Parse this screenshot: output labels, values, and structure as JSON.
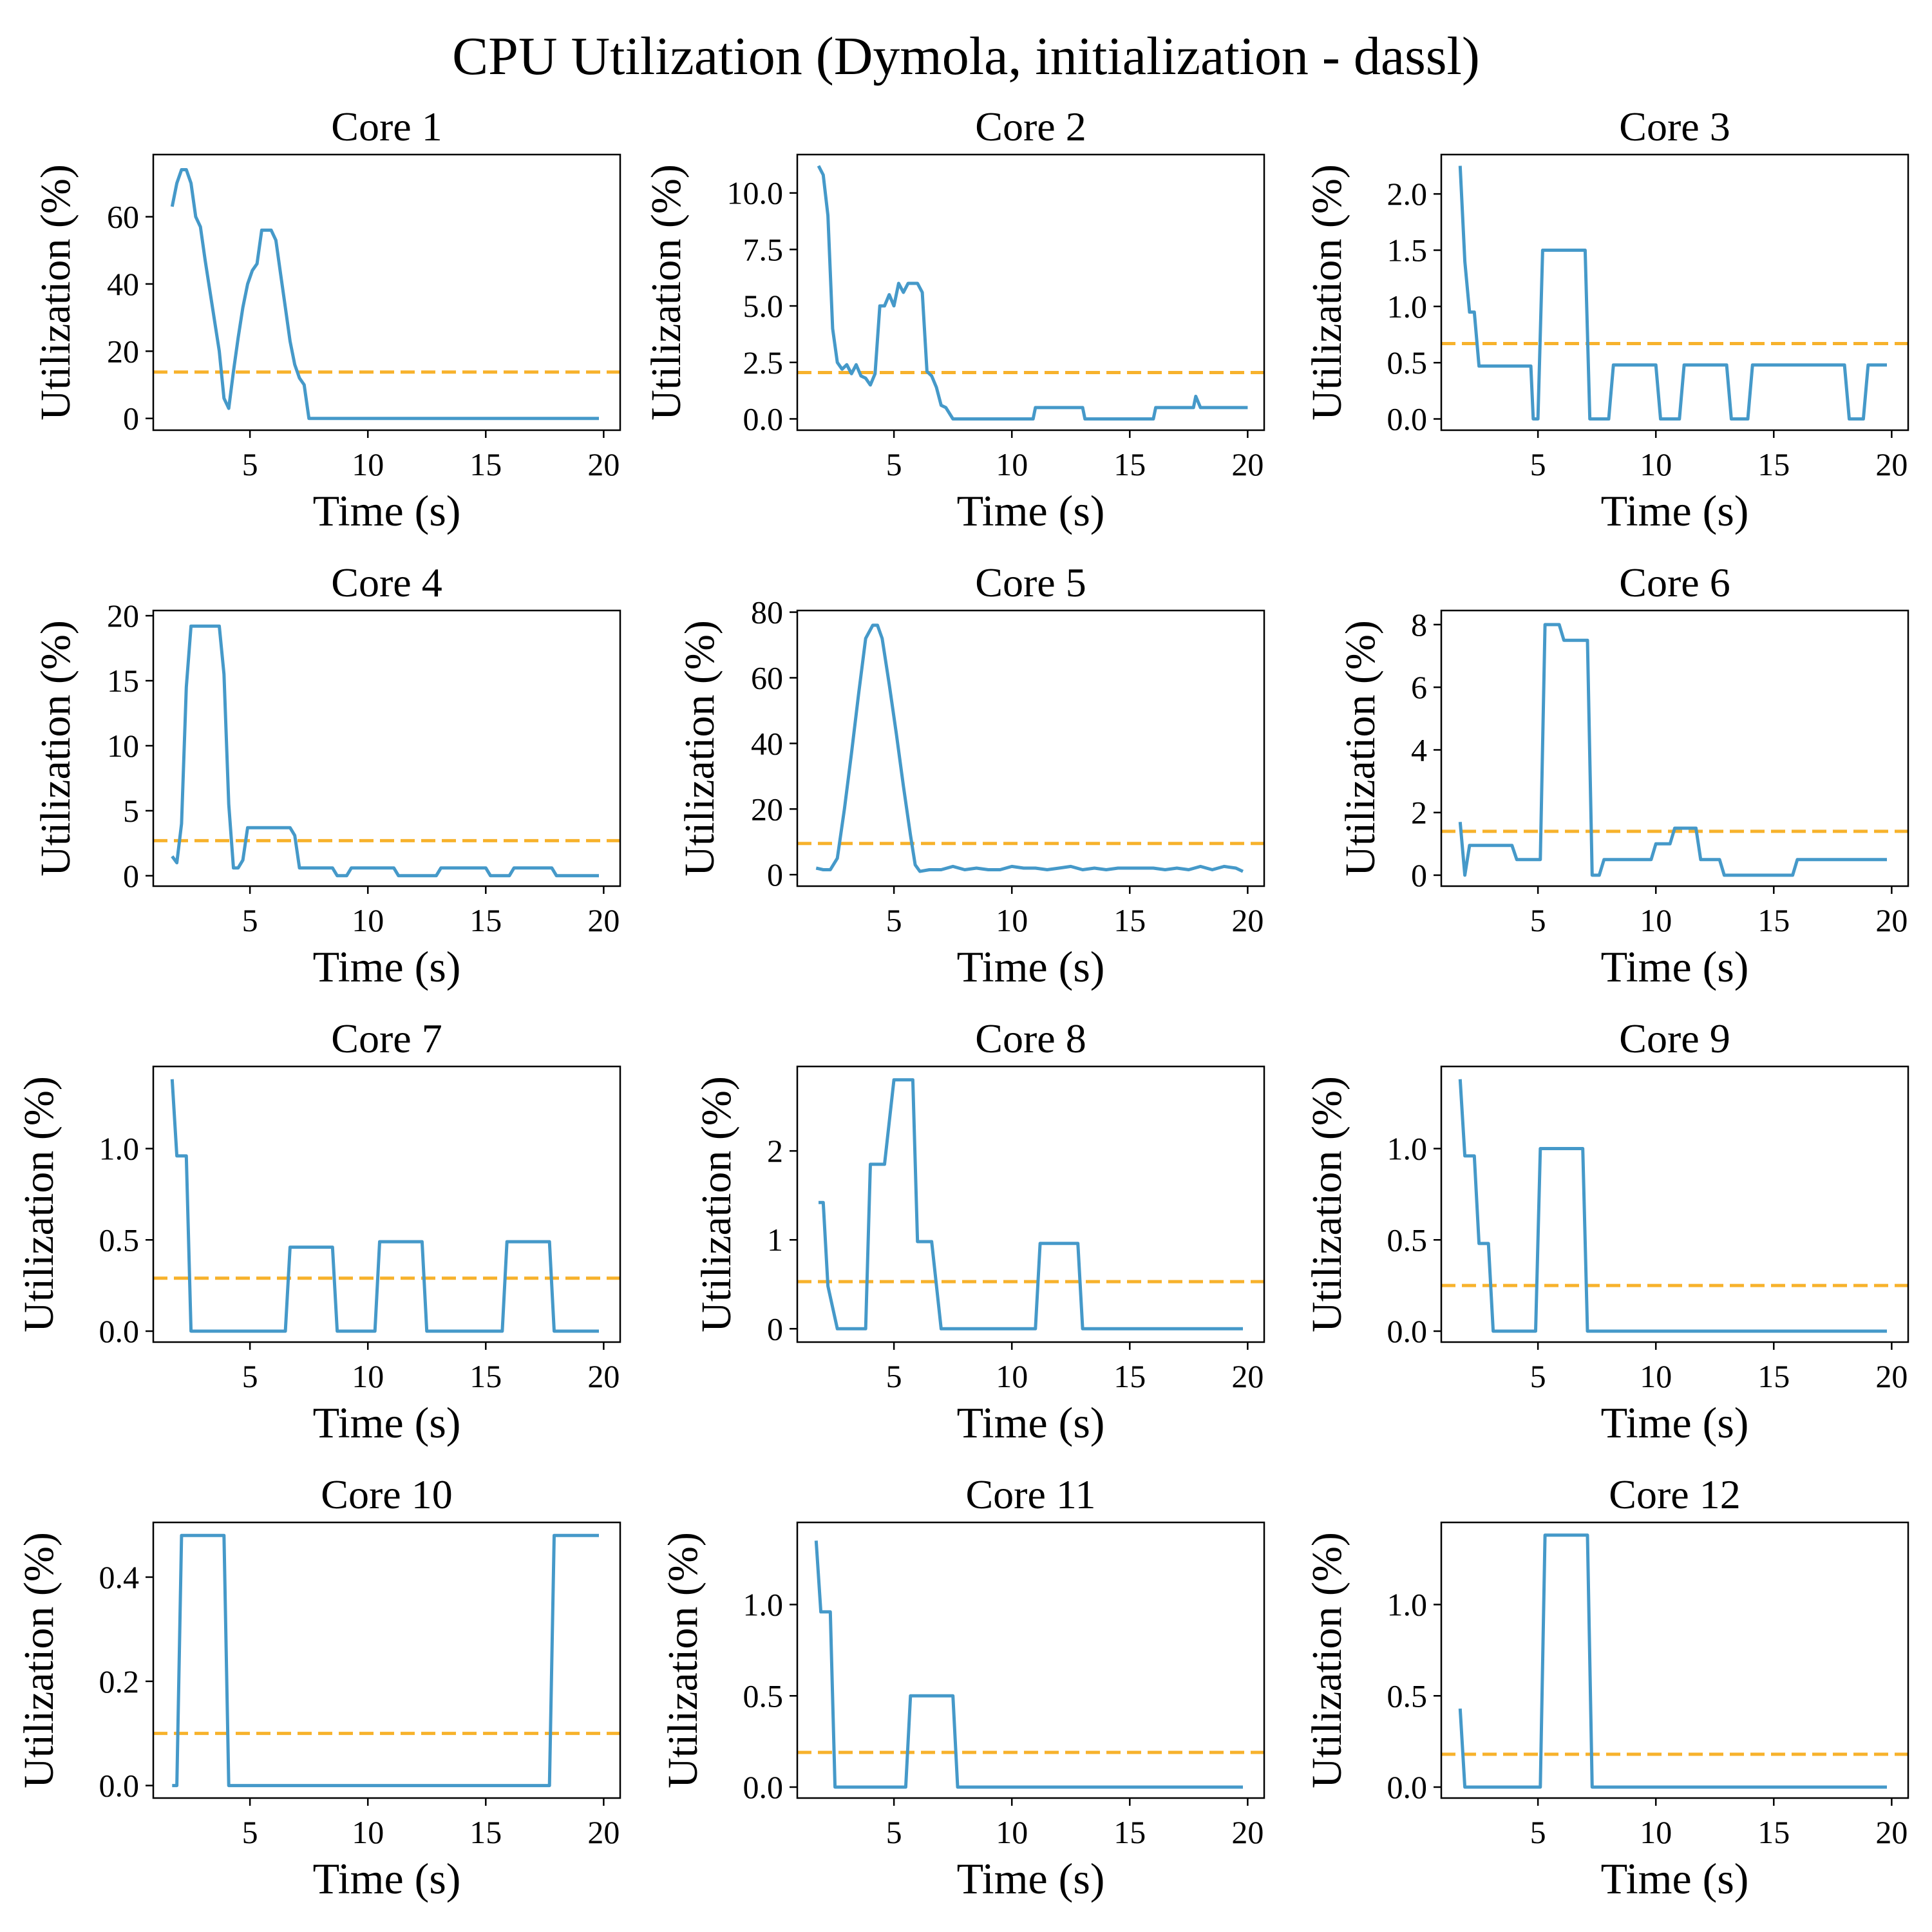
{
  "figure": {
    "title": "CPU Utilization (Dymola, initialization - dassl)",
    "colors": {
      "line": "#4599c9",
      "mean": "#f7b22c",
      "axis": "#000000"
    }
  },
  "chart_data": [
    {
      "type": "line",
      "title": "Core 1",
      "xlabel": "Time (s)",
      "ylabel": "Utilization (%)",
      "xlim": [
        0.9,
        20.7
      ],
      "ylim": [
        -3.5,
        78.5
      ],
      "xticks": [
        5,
        10,
        15,
        20
      ],
      "yticks": [
        0,
        20,
        40,
        60
      ],
      "yticklabels": [
        "0",
        "20",
        "40",
        "60"
      ],
      "mean": 13.8,
      "x": [
        1.7,
        1.9,
        2.1,
        2.3,
        2.5,
        2.7,
        2.9,
        3.1,
        3.3,
        3.5,
        3.7,
        3.9,
        4.1,
        4.3,
        4.5,
        4.7,
        4.9,
        5.1,
        5.3,
        5.5,
        5.7,
        5.9,
        6.1,
        6.3,
        6.5,
        6.7,
        6.9,
        7.1,
        7.3,
        7.5,
        19.8
      ],
      "series": [
        {
          "values": [
            63,
            70,
            74,
            74,
            70,
            60,
            57,
            47,
            38,
            29,
            20,
            6,
            3,
            14,
            24,
            33,
            40,
            44,
            46,
            56,
            56,
            56,
            53,
            43,
            33,
            23,
            16,
            12,
            10,
            0,
            0
          ]
        }
      ]
    },
    {
      "type": "line",
      "title": "Core 2",
      "xlabel": "Time (s)",
      "ylabel": "Utilization (%)",
      "xlim": [
        0.9,
        20.7
      ],
      "ylim": [
        -0.5,
        11.7
      ],
      "xticks": [
        5,
        10,
        15,
        20
      ],
      "yticks": [
        0,
        2.5,
        5,
        7.5,
        10
      ],
      "yticklabels": [
        "0.0",
        "2.5",
        "5.0",
        "7.5",
        "10.0"
      ],
      "mean": 2.05,
      "x": [
        1.8,
        2.0,
        2.2,
        2.4,
        2.6,
        2.8,
        3.0,
        3.2,
        3.4,
        3.6,
        3.8,
        4.0,
        4.2,
        4.4,
        4.6,
        4.8,
        5.0,
        5.2,
        5.4,
        5.6,
        5.8,
        6.0,
        6.2,
        6.4,
        6.6,
        6.8,
        7.0,
        7.2,
        7.5,
        10.9,
        11.0,
        13.0,
        13.1,
        16.0,
        16.1,
        17.7,
        17.8,
        18.0,
        20.0
      ],
      "series": [
        {
          "values": [
            11.2,
            10.8,
            9.0,
            4.0,
            2.5,
            2.2,
            2.4,
            2.0,
            2.4,
            1.9,
            1.8,
            1.5,
            2.0,
            5.0,
            5.0,
            5.5,
            5.0,
            6.0,
            5.6,
            6.0,
            6.0,
            6.0,
            5.6,
            2.1,
            1.9,
            1.4,
            0.6,
            0.5,
            0,
            0,
            0.5,
            0.5,
            0,
            0,
            0.5,
            0.5,
            1.0,
            0.5,
            0.5
          ]
        }
      ]
    },
    {
      "type": "line",
      "title": "Core 3",
      "xlabel": "Time (s)",
      "ylabel": "Utilization (%)",
      "xlim": [
        0.9,
        20.7
      ],
      "ylim": [
        -0.1,
        2.35
      ],
      "xticks": [
        5,
        10,
        15,
        20
      ],
      "yticks": [
        0,
        0.5,
        1,
        1.5,
        2
      ],
      "yticklabels": [
        "0.0",
        "0.5",
        "1.0",
        "1.5",
        "2.0"
      ],
      "mean": 0.67,
      "x": [
        1.7,
        1.9,
        2.1,
        2.3,
        2.5,
        4.7,
        4.8,
        5.0,
        5.2,
        7.0,
        7.2,
        8.0,
        8.2,
        10.0,
        10.2,
        11.0,
        11.2,
        13.0,
        13.2,
        13.9,
        14.1,
        18.0,
        18.2,
        18.8,
        19.0,
        19.8
      ],
      "series": [
        {
          "values": [
            2.25,
            1.4,
            0.95,
            0.95,
            0.47,
            0.47,
            0,
            0,
            1.5,
            1.5,
            0,
            0,
            0.48,
            0.48,
            0,
            0,
            0.48,
            0.48,
            0,
            0,
            0.48,
            0.48,
            0,
            0,
            0.48,
            0.48
          ]
        }
      ]
    },
    {
      "type": "line",
      "title": "Core 4",
      "xlabel": "Time (s)",
      "ylabel": "Utilization (%)",
      "xlim": [
        0.9,
        20.7
      ],
      "ylim": [
        -0.8,
        20.4
      ],
      "xticks": [
        5,
        10,
        15,
        20
      ],
      "yticks": [
        0,
        5,
        10,
        15,
        20
      ],
      "yticklabels": [
        "0",
        "5",
        "10",
        "15",
        "20"
      ],
      "mean": 2.7,
      "x": [
        1.7,
        1.9,
        2.1,
        2.3,
        2.5,
        3.0,
        3.7,
        3.9,
        4.1,
        4.3,
        4.5,
        4.7,
        4.9,
        5.1,
        6.7,
        6.9,
        7.1,
        8.5,
        8.7,
        9.1,
        9.3,
        11.1,
        11.3,
        12.9,
        13.1,
        15.0,
        15.2,
        16.0,
        16.2,
        17.8,
        18.0,
        19.8
      ],
      "series": [
        {
          "values": [
            1.5,
            1.0,
            4.0,
            14.5,
            19.2,
            19.2,
            19.2,
            15.5,
            5.5,
            0.6,
            0.6,
            1.2,
            3.7,
            3.7,
            3.7,
            3.1,
            0.6,
            0.6,
            0,
            0,
            0.6,
            0.6,
            0,
            0,
            0.6,
            0.6,
            0,
            0,
            0.6,
            0.6,
            0,
            0
          ]
        }
      ]
    },
    {
      "type": "line",
      "title": "Core 5",
      "xlabel": "Time (s)",
      "ylabel": "Utilization (%)",
      "xlim": [
        0.9,
        20.7
      ],
      "ylim": [
        -3.5,
        80.5
      ],
      "xticks": [
        5,
        10,
        15,
        20
      ],
      "yticks": [
        0,
        20,
        40,
        60,
        80
      ],
      "yticklabels": [
        "0",
        "20",
        "40",
        "60",
        "80"
      ],
      "mean": 9.5,
      "x": [
        1.7,
        2.0,
        2.3,
        2.6,
        2.9,
        3.2,
        3.5,
        3.8,
        4.1,
        4.3,
        4.5,
        4.8,
        5.1,
        5.4,
        5.7,
        5.9,
        6.1,
        6.5,
        7.0,
        7.5,
        8.0,
        8.5,
        9.0,
        9.5,
        10.0,
        10.5,
        11.0,
        11.5,
        12.0,
        12.5,
        13.0,
        13.5,
        14.0,
        14.5,
        15.0,
        15.5,
        16.0,
        16.5,
        17.0,
        17.5,
        18.0,
        18.5,
        19.0,
        19.5,
        19.8
      ],
      "series": [
        {
          "values": [
            2,
            1.5,
            1.5,
            5,
            20,
            37,
            55,
            72,
            76,
            76,
            72,
            58,
            43,
            27,
            12,
            3,
            1,
            1.5,
            1.5,
            2.5,
            1.5,
            2,
            1.5,
            1.5,
            2.5,
            2,
            2,
            1.5,
            2,
            2.5,
            1.5,
            2,
            1.5,
            2,
            2,
            2,
            2,
            1.5,
            2,
            1.5,
            2.5,
            1.5,
            2.5,
            2,
            1
          ]
        }
      ]
    },
    {
      "type": "line",
      "title": "Core 6",
      "xlabel": "Time (s)",
      "ylabel": "Utilization (%)",
      "xlim": [
        0.9,
        20.7
      ],
      "ylim": [
        -0.35,
        8.45
      ],
      "xticks": [
        5,
        10,
        15,
        20
      ],
      "yticks": [
        0,
        2,
        4,
        6,
        8
      ],
      "yticklabels": [
        "0",
        "2",
        "4",
        "6",
        "8"
      ],
      "mean": 1.4,
      "x": [
        1.7,
        1.9,
        2.1,
        3.9,
        4.1,
        5.1,
        5.3,
        5.9,
        6.1,
        7.1,
        7.3,
        7.6,
        7.8,
        9.8,
        10.0,
        10.6,
        10.8,
        11.7,
        11.9,
        12.7,
        12.9,
        15.8,
        16.0,
        19.8
      ],
      "series": [
        {
          "values": [
            1.7,
            0,
            0.95,
            0.95,
            0.5,
            0.5,
            8.0,
            8.0,
            7.5,
            7.5,
            0,
            0,
            0.5,
            0.5,
            1.0,
            1.0,
            1.5,
            1.5,
            0.5,
            0.5,
            0,
            0,
            0.5,
            0.5
          ]
        }
      ]
    },
    {
      "type": "line",
      "title": "Core 7",
      "xlabel": "Time (s)",
      "ylabel": "Utilization (%)",
      "xlim": [
        0.9,
        20.7
      ],
      "ylim": [
        -0.06,
        1.45
      ],
      "xticks": [
        5,
        10,
        15,
        20
      ],
      "yticks": [
        0,
        0.5,
        1
      ],
      "yticklabels": [
        "0.0",
        "0.5",
        "1.0"
      ],
      "mean": 0.29,
      "x": [
        1.7,
        1.9,
        2.1,
        2.3,
        2.5,
        6.5,
        6.7,
        8.5,
        8.7,
        10.3,
        10.5,
        12.3,
        12.5,
        15.7,
        15.9,
        17.7,
        17.9,
        19.8
      ],
      "series": [
        {
          "values": [
            1.38,
            0.96,
            0.96,
            0.96,
            0,
            0,
            0.46,
            0.46,
            0,
            0,
            0.49,
            0.49,
            0,
            0,
            0.49,
            0.49,
            0,
            0
          ]
        }
      ]
    },
    {
      "type": "line",
      "title": "Core 8",
      "xlabel": "Time (s)",
      "ylabel": "Utilization (%)",
      "xlim": [
        0.9,
        20.7
      ],
      "ylim": [
        -0.15,
        2.95
      ],
      "xticks": [
        5,
        10,
        15,
        20
      ],
      "yticks": [
        0,
        1,
        2
      ],
      "yticklabels": [
        "0",
        "1",
        "2"
      ],
      "mean": 0.53,
      "x": [
        1.8,
        2.0,
        2.2,
        2.6,
        3.8,
        4.0,
        4.6,
        5.0,
        5.8,
        6.0,
        6.6,
        7.0,
        11.0,
        11.2,
        12.8,
        13.0,
        19.8
      ],
      "series": [
        {
          "values": [
            1.42,
            1.42,
            0.48,
            0,
            0,
            1.85,
            1.85,
            2.8,
            2.8,
            0.98,
            0.98,
            0,
            0,
            0.96,
            0.96,
            0,
            0
          ]
        }
      ]
    },
    {
      "type": "line",
      "title": "Core 9",
      "xlabel": "Time (s)",
      "ylabel": "Utilization (%)",
      "xlim": [
        0.9,
        20.7
      ],
      "ylim": [
        -0.06,
        1.45
      ],
      "xticks": [
        5,
        10,
        15,
        20
      ],
      "yticks": [
        0,
        0.5,
        1
      ],
      "yticklabels": [
        "0.0",
        "0.5",
        "1.0"
      ],
      "mean": 0.25,
      "x": [
        1.7,
        1.9,
        2.1,
        2.3,
        2.5,
        2.7,
        2.9,
        3.1,
        4.9,
        5.1,
        6.9,
        7.1,
        19.8
      ],
      "series": [
        {
          "values": [
            1.38,
            0.96,
            0.96,
            0.96,
            0.48,
            0.48,
            0.48,
            0,
            0,
            1.0,
            1.0,
            0,
            0
          ]
        }
      ]
    },
    {
      "type": "line",
      "title": "Core 10",
      "xlabel": "Time (s)",
      "ylabel": "Utilization (%)",
      "xlim": [
        0.9,
        20.7
      ],
      "ylim": [
        -0.024,
        0.505
      ],
      "xticks": [
        5,
        10,
        15,
        20
      ],
      "yticks": [
        0,
        0.2,
        0.4
      ],
      "yticklabels": [
        "0.0",
        "0.2",
        "0.4"
      ],
      "mean": 0.1,
      "x": [
        1.7,
        1.9,
        2.1,
        3.9,
        4.1,
        17.7,
        17.9,
        19.8
      ],
      "series": [
        {
          "values": [
            0,
            0,
            0.48,
            0.48,
            0,
            0,
            0.48,
            0.48
          ]
        }
      ]
    },
    {
      "type": "line",
      "title": "Core 11",
      "xlabel": "Time (s)",
      "ylabel": "Utilization (%)",
      "xlim": [
        0.9,
        20.7
      ],
      "ylim": [
        -0.06,
        1.45
      ],
      "xticks": [
        5,
        10,
        15,
        20
      ],
      "yticks": [
        0,
        0.5,
        1
      ],
      "yticklabels": [
        "0.0",
        "0.5",
        "1.0"
      ],
      "mean": 0.19,
      "x": [
        1.7,
        1.9,
        2.1,
        2.3,
        2.5,
        5.5,
        5.7,
        7.5,
        7.7,
        19.8
      ],
      "series": [
        {
          "values": [
            1.35,
            0.96,
            0.96,
            0.96,
            0,
            0,
            0.5,
            0.5,
            0,
            0
          ]
        }
      ]
    },
    {
      "type": "line",
      "title": "Core 12",
      "xlabel": "Time (s)",
      "ylabel": "Utilization (%)",
      "xlim": [
        0.9,
        20.7
      ],
      "ylim": [
        -0.06,
        1.45
      ],
      "xticks": [
        5,
        10,
        15,
        20
      ],
      "yticks": [
        0,
        0.5,
        1
      ],
      "yticklabels": [
        "0.0",
        "0.5",
        "1.0"
      ],
      "mean": 0.18,
      "x": [
        1.7,
        1.9,
        5.1,
        5.3,
        7.1,
        7.3,
        19.8
      ],
      "series": [
        {
          "values": [
            0.43,
            0,
            0,
            1.38,
            1.38,
            0,
            0
          ]
        }
      ]
    }
  ]
}
